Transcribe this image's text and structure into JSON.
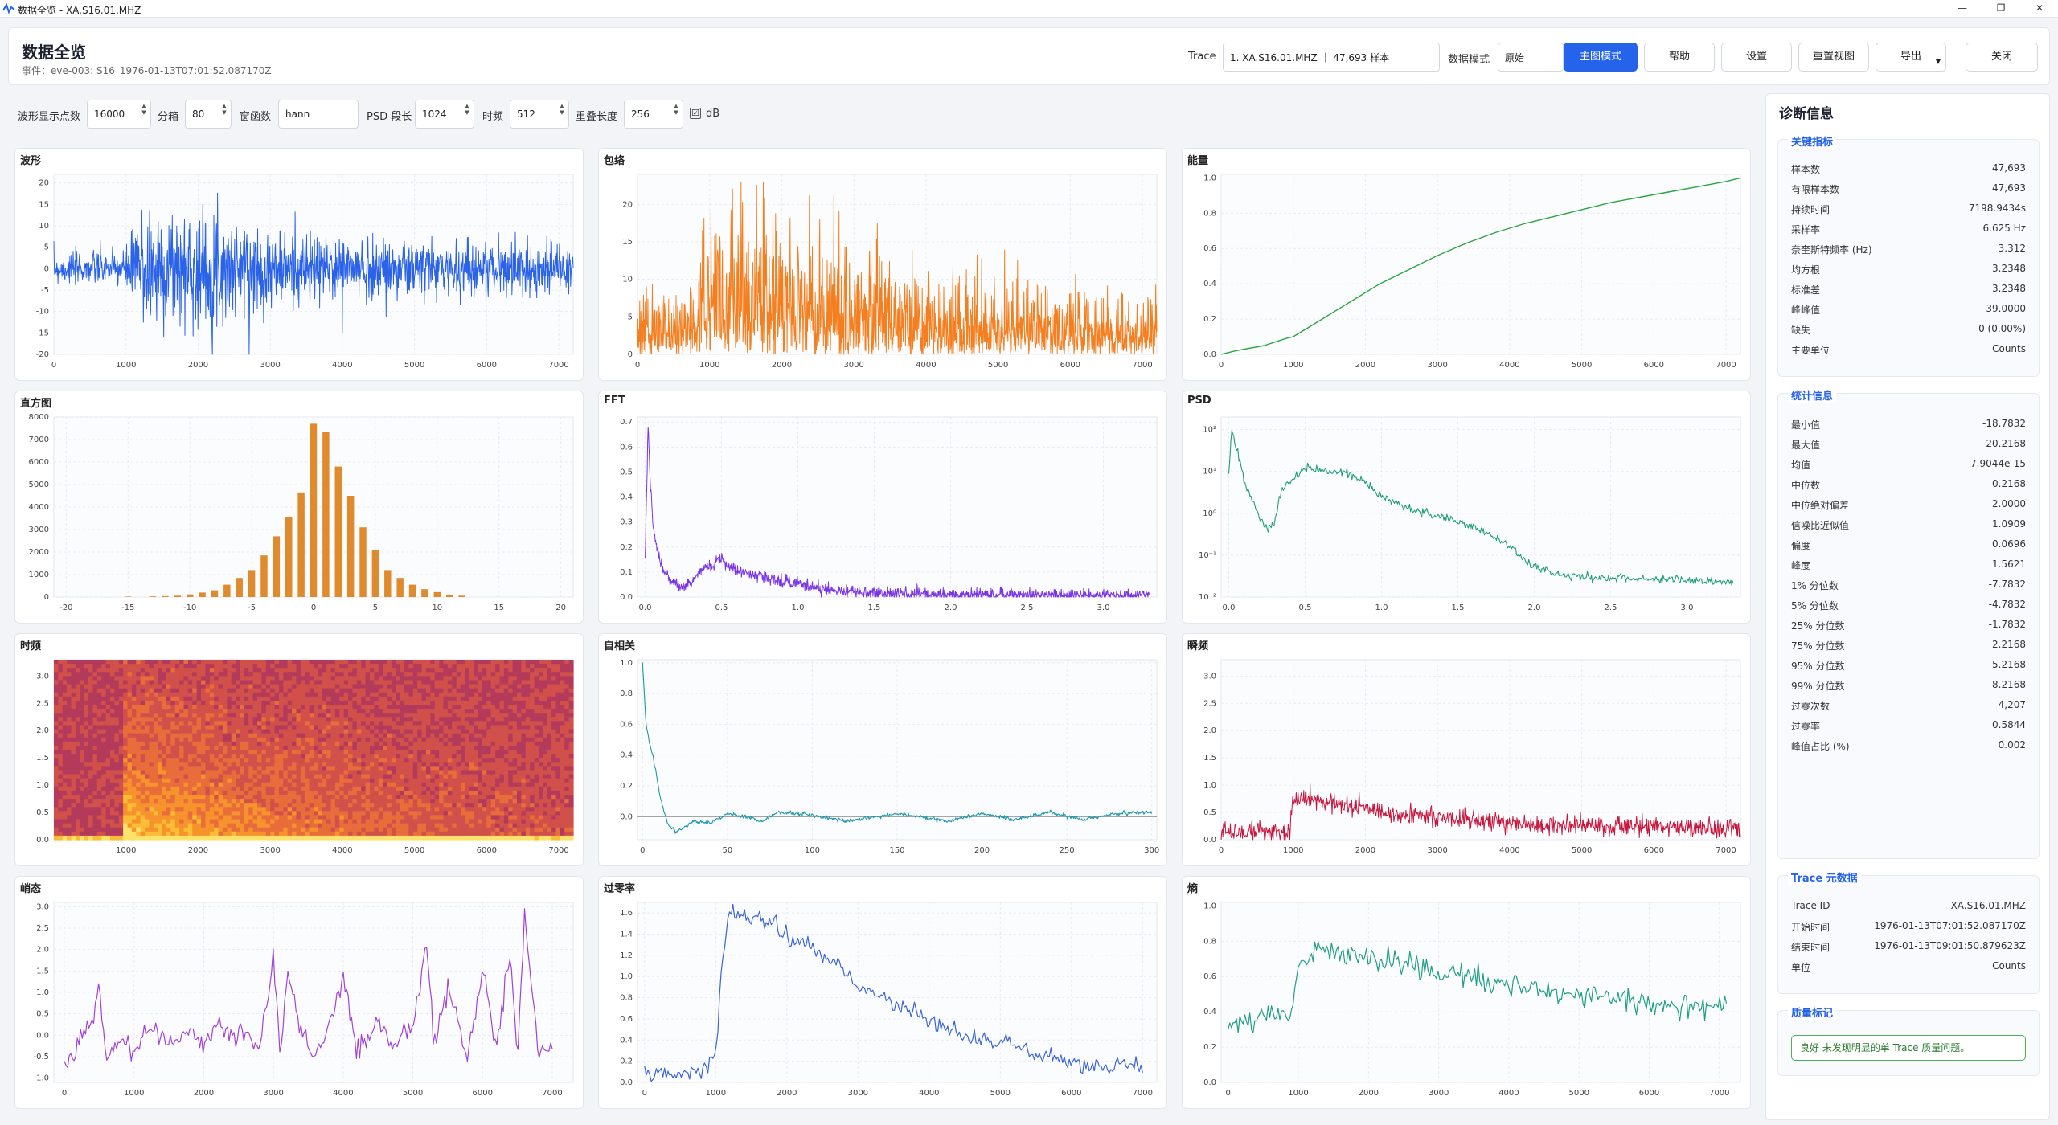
{
  "window": {
    "title": "数据全览 - XA.S16.01.MHZ"
  },
  "header": {
    "title": "数据全览",
    "event": "事件：eve-003: S16_1976-01-13T07:01:52.087170Z",
    "trace_label": "Trace",
    "trace_value": "1. XA.S16.01.MHZ ｜ 47,693 样本",
    "mode_label": "数据模式",
    "mode_value": "原始",
    "btn_main": "主图模式",
    "btn_help": "帮助",
    "btn_settings": "设置",
    "btn_reset": "重置视图",
    "btn_export": "导出",
    "btn_close": "关闭"
  },
  "controls": {
    "wave_points_label": "波形显示点数",
    "wave_points": "16000",
    "bins_label": "分箱",
    "bins": "80",
    "window_label": "窗函数",
    "window": "hann",
    "psd_len_label": "PSD 段长",
    "psd_len": "1024",
    "tf_label": "时频",
    "tf": "512",
    "overlap_label": "重叠长度",
    "overlap": "256",
    "db_label": "dB",
    "db_checked": "☑"
  },
  "panels": {
    "wave": "波形",
    "env": "包络",
    "energy": "能量",
    "hist": "直方图",
    "fft": "FFT",
    "psd": "PSD",
    "tf": "时频",
    "acf": "自相关",
    "inst": "瞬频",
    "kurt": "峭态",
    "zcr": "过零率",
    "entropy": "熵"
  },
  "colors": {
    "wave": "#2a63e8",
    "env": "#f47f20",
    "energy": "#2aa640",
    "hist": "#e08a2e",
    "fft": "#7a35e6",
    "psd": "#1f9e78",
    "acf": "#1e97a8",
    "inst": "#c8173d",
    "kurt": "#a442d8",
    "zcr": "#3a64d8",
    "entropy": "#1f9e86"
  },
  "sidebar": {
    "title": "诊断信息",
    "key_title": "关键指标",
    "key_rows": [
      [
        "样本数",
        "47,693"
      ],
      [
        "有限样本数",
        "47,693"
      ],
      [
        "持续时间",
        "7198.9434s"
      ],
      [
        "采样率",
        "6.625 Hz"
      ],
      [
        "奈奎斯特频率 (Hz)",
        "3.312"
      ],
      [
        "均方根",
        "3.2348"
      ],
      [
        "标准差",
        "3.2348"
      ],
      [
        "峰峰值",
        "39.0000"
      ],
      [
        "缺失",
        "0 (0.00%)"
      ],
      [
        "主要单位",
        "Counts"
      ]
    ],
    "stats_title": "统计信息",
    "stats_rows": [
      [
        "最小值",
        "-18.7832"
      ],
      [
        "最大值",
        "20.2168"
      ],
      [
        "均值",
        "7.9044e-15"
      ],
      [
        "中位数",
        "0.2168"
      ],
      [
        "中位绝对偏差",
        "2.0000"
      ],
      [
        "信噪比近似值",
        "1.0909"
      ],
      [
        "偏度",
        "0.0696"
      ],
      [
        "峰度",
        "1.5621"
      ],
      [
        "1% 分位数",
        "-7.7832"
      ],
      [
        "5% 分位数",
        "-4.7832"
      ],
      [
        "25% 分位数",
        "-1.7832"
      ],
      [
        "75% 分位数",
        "2.2168"
      ],
      [
        "95% 分位数",
        "5.2168"
      ],
      [
        "99% 分位数",
        "8.2168"
      ],
      [
        "过零次数",
        "4,207"
      ],
      [
        "过零率",
        "0.5844"
      ],
      [
        "峰值占比 (%)",
        "0.002"
      ]
    ],
    "meta_title": "Trace 元数据",
    "meta_rows": [
      [
        "Trace ID",
        "XA.S16.01.MHZ"
      ],
      [
        "开始时间",
        "1976-01-13T07:01:52.087170Z"
      ],
      [
        "结束时间",
        "1976-01-13T09:01:50.879623Z"
      ],
      [
        "单位",
        "Counts"
      ]
    ],
    "quality_title": "质量标记",
    "quality_text": "良好  未发现明显的单 Trace 质量问题。"
  },
  "chart_data": [
    {
      "type": "line",
      "name": "wave",
      "x_ticks": [
        "0",
        "1000",
        "2000",
        "3000",
        "4000",
        "5000",
        "6000",
        "7000"
      ],
      "y_ticks": [
        "20",
        "15",
        "10",
        "5",
        "0",
        "-5",
        "-10",
        "-15",
        "-20"
      ],
      "xlim": [
        0,
        7200
      ],
      "ylim": [
        -20,
        22
      ],
      "amp_profile": [
        [
          0,
          3
        ],
        [
          1000,
          4
        ],
        [
          1200,
          14
        ],
        [
          2400,
          10
        ],
        [
          3600,
          7
        ],
        [
          7200,
          5
        ]
      ]
    },
    {
      "type": "line",
      "name": "env",
      "x_ticks": [
        "0",
        "1000",
        "2000",
        "3000",
        "4000",
        "5000",
        "6000",
        "7000"
      ],
      "y_ticks": [
        "20",
        "15",
        "10",
        "5",
        "0"
      ],
      "xlim": [
        0,
        7200
      ],
      "ylim": [
        0,
        24
      ],
      "amp_profile": [
        [
          0,
          6
        ],
        [
          800,
          7
        ],
        [
          1000,
          14
        ],
        [
          1400,
          17
        ],
        [
          2600,
          12
        ],
        [
          4000,
          8
        ],
        [
          7200,
          6
        ]
      ]
    },
    {
      "type": "line",
      "name": "energy",
      "x_ticks": [
        "0",
        "1000",
        "2000",
        "3000",
        "4000",
        "5000",
        "6000",
        "7000"
      ],
      "y_ticks": [
        "1.0",
        "0.8",
        "0.6",
        "0.4",
        "0.2",
        "0.0"
      ],
      "xlim": [
        0,
        7200
      ],
      "ylim": [
        0,
        1.02
      ],
      "x": [
        0,
        200,
        600,
        900,
        1000,
        1200,
        1400,
        1800,
        2200,
        2600,
        3000,
        3400,
        3800,
        4200,
        4600,
        5000,
        5400,
        5800,
        6200,
        6600,
        7000,
        7200
      ],
      "y": [
        0,
        0.02,
        0.05,
        0.09,
        0.1,
        0.15,
        0.2,
        0.3,
        0.4,
        0.48,
        0.56,
        0.63,
        0.69,
        0.74,
        0.78,
        0.82,
        0.86,
        0.89,
        0.92,
        0.95,
        0.98,
        1.0
      ]
    },
    {
      "type": "bar",
      "name": "hist",
      "x_ticks": [
        "-20",
        "-15",
        "-10",
        "-5",
        "0",
        "5",
        "10",
        "15",
        "20"
      ],
      "y_ticks": [
        "8000",
        "7000",
        "6000",
        "5000",
        "4000",
        "3000",
        "2000",
        "1000",
        "0"
      ],
      "xlim": [
        -21,
        21
      ],
      "ylim": [
        0,
        8000
      ],
      "x": [
        -15,
        -13,
        -12,
        -11,
        -10,
        -9,
        -8,
        -7,
        -6,
        -5,
        -4,
        -3,
        -2,
        -1,
        0,
        1,
        2,
        3,
        4,
        5,
        6,
        7,
        8,
        9,
        10,
        11,
        12
      ],
      "values": [
        20,
        30,
        40,
        60,
        120,
        200,
        300,
        550,
        850,
        1200,
        1850,
        2700,
        3550,
        4650,
        7700,
        7350,
        5800,
        4500,
        3100,
        2100,
        1200,
        850,
        550,
        350,
        220,
        110,
        60
      ]
    },
    {
      "type": "line",
      "name": "fft",
      "x_ticks": [
        "0.0",
        "0.5",
        "1.0",
        "1.5",
        "2.0",
        "2.5",
        "3.0"
      ],
      "y_ticks": [
        "0.7",
        "0.6",
        "0.5",
        "0.4",
        "0.3",
        "0.2",
        "0.1",
        "0.0"
      ],
      "xlim": [
        -0.05,
        3.35
      ],
      "ylim": [
        0,
        0.72
      ],
      "x": [
        0,
        0.02,
        0.03,
        0.05,
        0.08,
        0.12,
        0.18,
        0.25,
        0.3,
        0.35,
        0.45,
        0.5,
        0.55,
        0.6,
        0.7,
        0.8,
        0.9,
        1.0,
        1.1,
        1.2,
        1.3,
        1.5,
        2.0,
        2.5,
        3.0,
        3.3
      ],
      "y": [
        0.15,
        0.7,
        0.5,
        0.3,
        0.18,
        0.1,
        0.06,
        0.04,
        0.06,
        0.1,
        0.13,
        0.16,
        0.13,
        0.11,
        0.09,
        0.08,
        0.06,
        0.06,
        0.04,
        0.03,
        0.025,
        0.015,
        0.01,
        0.008,
        0.007,
        0.007
      ]
    },
    {
      "type": "line",
      "name": "psd",
      "log_y": true,
      "x_ticks": [
        "0.0",
        "0.5",
        "1.0",
        "1.5",
        "2.0",
        "2.5",
        "3.0"
      ],
      "y_ticks": [
        "10²",
        "10¹",
        "10⁰",
        "10⁻¹",
        "10⁻²"
      ],
      "xlim": [
        -0.05,
        3.35
      ],
      "ylim": [
        -2,
        2.3
      ],
      "x": [
        0,
        0.02,
        0.05,
        0.1,
        0.2,
        0.25,
        0.3,
        0.35,
        0.45,
        0.5,
        0.6,
        0.7,
        0.8,
        0.9,
        1.0,
        1.2,
        1.4,
        1.6,
        1.8,
        2.0,
        2.2,
        2.5,
        3.0,
        3.3
      ],
      "y": [
        0.9,
        2.1,
        1.6,
        0.8,
        -0.1,
        -0.4,
        -0.2,
        0.6,
        0.9,
        1.1,
        1.0,
        1.0,
        0.9,
        0.7,
        0.4,
        0.1,
        -0.1,
        -0.3,
        -0.7,
        -1.3,
        -1.5,
        -1.55,
        -1.6,
        -1.65
      ]
    },
    {
      "type": "heatmap",
      "name": "tf",
      "x_ticks": [
        "1000",
        "2000",
        "3000",
        "4000",
        "5000",
        "6000",
        "7000"
      ],
      "y_ticks": [
        "3.0",
        "2.5",
        "2.0",
        "1.5",
        "1.0",
        "0.5",
        "0.0"
      ],
      "xlim": [
        0,
        7200
      ],
      "ylim": [
        0,
        3.3
      ]
    },
    {
      "type": "line",
      "name": "acf",
      "x_ticks": [
        "0",
        "50",
        "100",
        "150",
        "200",
        "250",
        "300"
      ],
      "y_ticks": [
        "1.0",
        "0.8",
        "0.6",
        "0.4",
        "0.2",
        "0.0"
      ],
      "xlim": [
        -3,
        303
      ],
      "ylim": [
        -0.15,
        1.02
      ],
      "x": [
        0,
        2,
        4,
        6,
        8,
        10,
        12,
        15,
        20,
        25,
        30,
        40,
        50,
        60,
        70,
        80,
        100,
        120,
        150,
        180,
        200,
        220,
        240,
        260,
        280,
        300
      ],
      "y": [
        1.0,
        0.6,
        0.48,
        0.4,
        0.28,
        0.15,
        0.06,
        -0.05,
        -0.1,
        -0.06,
        -0.03,
        -0.04,
        0.02,
        0.0,
        -0.03,
        0.03,
        0.01,
        -0.03,
        0.02,
        -0.03,
        0.02,
        -0.02,
        0.03,
        -0.02,
        0.02,
        0.03
      ]
    },
    {
      "type": "line",
      "name": "inst",
      "x_ticks": [
        "0",
        "1000",
        "2000",
        "3000",
        "4000",
        "5000",
        "6000",
        "7000"
      ],
      "y_ticks": [
        "3.0",
        "2.5",
        "2.0",
        "1.5",
        "1.0",
        "0.5",
        "0.0"
      ],
      "xlim": [
        0,
        7200
      ],
      "ylim": [
        0,
        3.3
      ],
      "level": [
        [
          0,
          0.15
        ],
        [
          950,
          0.15
        ],
        [
          1000,
          0.8
        ],
        [
          1400,
          0.7
        ],
        [
          2500,
          0.45
        ],
        [
          4000,
          0.3
        ],
        [
          7200,
          0.2
        ]
      ]
    },
    {
      "type": "line",
      "name": "kurt",
      "x_ticks": [
        "0",
        "1000",
        "2000",
        "3000",
        "4000",
        "5000",
        "6000",
        "7000"
      ],
      "y_ticks": [
        "3.0",
        "2.5",
        "2.0",
        "1.5",
        "1.0",
        "0.5",
        "0.0",
        "-0.5",
        "-1.0"
      ],
      "xlim": [
        -150,
        7300
      ],
      "ylim": [
        -1.1,
        3.1
      ],
      "x": [
        0,
        200,
        400,
        500,
        600,
        800,
        1000,
        1200,
        1500,
        1800,
        2000,
        2200,
        2400,
        2600,
        2800,
        3000,
        3100,
        3200,
        3400,
        3600,
        3800,
        4000,
        4200,
        4500,
        4700,
        5000,
        5200,
        5300,
        5500,
        5800,
        6000,
        6200,
        6400,
        6500,
        6600,
        6800,
        7000
      ],
      "y": [
        -0.7,
        -0.2,
        0.3,
        1.2,
        -0.6,
        0.0,
        -0.5,
        0.1,
        -0.2,
        0.1,
        -0.3,
        0.4,
        -0.1,
        0.2,
        -0.3,
        1.8,
        -0.6,
        1.5,
        0.0,
        -0.5,
        0.2,
        1.3,
        -0.3,
        0.3,
        -0.2,
        0.1,
        2.3,
        -0.3,
        1.0,
        -0.5,
        1.6,
        -0.3,
        2.0,
        -0.6,
        2.9,
        -0.4,
        -0.3
      ]
    },
    {
      "type": "line",
      "name": "zcr",
      "x_ticks": [
        "0",
        "1000",
        "2000",
        "3000",
        "4000",
        "5000",
        "6000",
        "7000"
      ],
      "y_ticks": [
        "1.6",
        "1.4",
        "1.2",
        "1.0",
        "0.8",
        "0.6",
        "0.4",
        "0.2",
        "0.0"
      ],
      "xlim": [
        -100,
        7200
      ],
      "ylim": [
        0,
        1.7
      ],
      "x": [
        0,
        300,
        600,
        800,
        1000,
        1100,
        1200,
        1500,
        1800,
        2000,
        2300,
        2500,
        2800,
        3000,
        3300,
        3600,
        4000,
        4400,
        4800,
        5200,
        5600,
        6000,
        6400,
        6800,
        7000
      ],
      "y": [
        0.1,
        0.08,
        0.1,
        0.12,
        0.3,
        1.2,
        1.6,
        1.55,
        1.5,
        1.35,
        1.3,
        1.2,
        1.05,
        0.9,
        0.85,
        0.7,
        0.6,
        0.45,
        0.4,
        0.35,
        0.25,
        0.2,
        0.15,
        0.2,
        0.15
      ]
    },
    {
      "type": "line",
      "name": "entropy",
      "x_ticks": [
        "0",
        "1000",
        "2000",
        "3000",
        "4000",
        "5000",
        "6000",
        "7000"
      ],
      "y_ticks": [
        "1.0",
        "0.8",
        "0.6",
        "0.4",
        "0.2",
        "0.0"
      ],
      "xlim": [
        -100,
        7300
      ],
      "ylim": [
        0,
        1.02
      ],
      "x": [
        0,
        300,
        600,
        900,
        1000,
        1200,
        1500,
        1800,
        2200,
        2600,
        3000,
        3400,
        3800,
        4200,
        4600,
        5000,
        5400,
        5800,
        6200,
        6600,
        7000,
        7100
      ],
      "y": [
        0.3,
        0.35,
        0.4,
        0.38,
        0.65,
        0.75,
        0.75,
        0.72,
        0.7,
        0.68,
        0.62,
        0.6,
        0.55,
        0.55,
        0.5,
        0.5,
        0.48,
        0.45,
        0.45,
        0.42,
        0.42,
        0.45
      ]
    }
  ]
}
